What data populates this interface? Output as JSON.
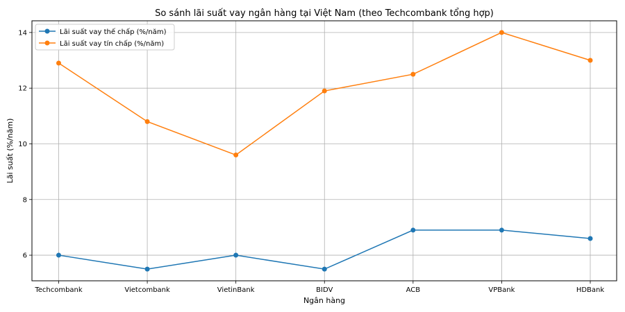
{
  "chart_data": {
    "type": "line",
    "title": "So sánh lãi suất vay ngân hàng tại Việt Nam (theo Techcombank tổng hợp)",
    "xlabel": "Ngân hàng",
    "ylabel": "Lãi suất (%/năm)",
    "categories": [
      "Techcombank",
      "Vietcombank",
      "VietinBank",
      "BIDV",
      "ACB",
      "VPBank",
      "HDBank"
    ],
    "ylim": [
      5.08,
      14.42
    ],
    "yticks": [
      6,
      8,
      10,
      12,
      14
    ],
    "grid": true,
    "legend_position": "top-left",
    "series": [
      {
        "name": "Lãi suất vay thế chấp (%/năm)",
        "color": "#1f77b4",
        "values": [
          6.0,
          5.5,
          6.0,
          5.5,
          6.9,
          6.9,
          6.6
        ]
      },
      {
        "name": "Lãi suất vay tín chấp (%/năm)",
        "color": "#ff7f0e",
        "values": [
          12.9,
          10.8,
          9.6,
          11.9,
          12.5,
          14.0,
          13.0
        ]
      }
    ]
  }
}
